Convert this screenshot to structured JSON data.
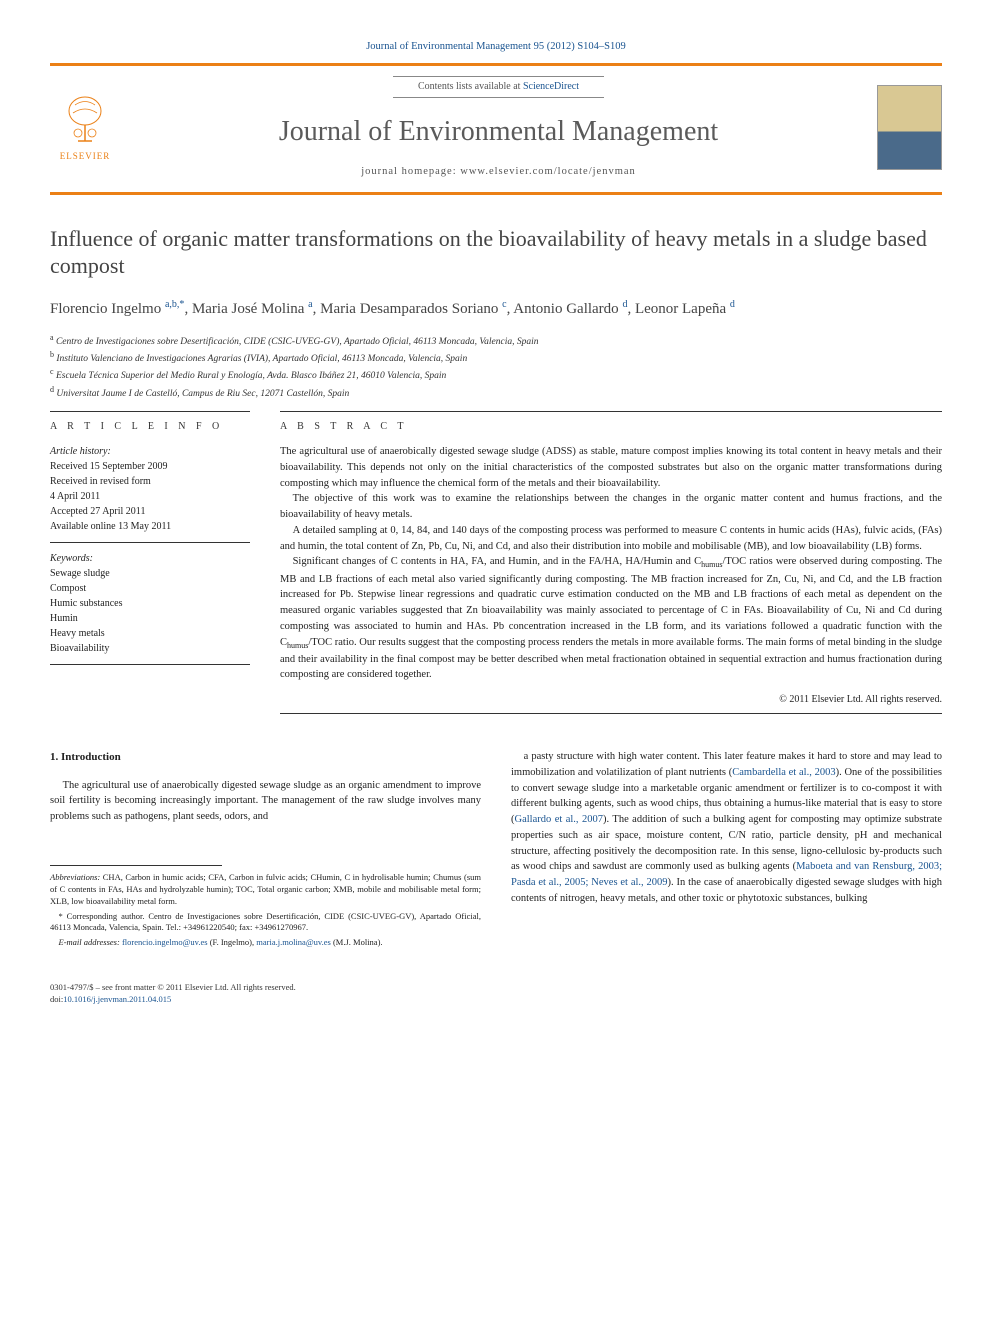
{
  "header": {
    "citation": "Journal of Environmental Management 95 (2012) S104–S109",
    "contents_prefix": "Contents lists available at ",
    "contents_link": "ScienceDirect",
    "journal_name": "Journal of Environmental Management",
    "homepage_prefix": "journal homepage: ",
    "homepage_url": "www.elsevier.com/locate/jenvman",
    "publisher": "ELSEVIER"
  },
  "article": {
    "title": "Influence of organic matter transformations on the bioavailability of heavy metals in a sludge based compost",
    "authors_html": "Florencio Ingelmo <sup>a,b,*</sup>, Maria José Molina <sup>a</sup>, Maria Desamparados Soriano <sup>c</sup>, Antonio Gallardo <sup>d</sup>, Leonor Lapeña <sup>d</sup>",
    "affiliations": [
      "a Centro de Investigaciones sobre Desertificación, CIDE (CSIC-UVEG-GV), Apartado Oficial, 46113 Moncada, Valencia, Spain",
      "b Instituto Valenciano de Investigaciones Agrarias (IVIA), Apartado Oficial, 46113 Moncada, Valencia, Spain",
      "c Escuela Técnica Superior del Medio Rural y Enología, Avda. Blasco Ibáñez 21, 46010 Valencia, Spain",
      "d Universitat Jaume I de Castelló, Campus de Riu Sec, 12071 Castellón, Spain"
    ]
  },
  "info": {
    "heading": "A R T I C L E   I N F O",
    "history_label": "Article history:",
    "history": [
      "Received 15 September 2009",
      "Received in revised form",
      "4 April 2011",
      "Accepted 27 April 2011",
      "Available online 13 May 2011"
    ],
    "keywords_label": "Keywords:",
    "keywords": [
      "Sewage sludge",
      "Compost",
      "Humic substances",
      "Humin",
      "Heavy metals",
      "Bioavailability"
    ]
  },
  "abstract": {
    "heading": "A B S T R A C T",
    "paragraphs": [
      "The agricultural use of anaerobically digested sewage sludge (ADSS) as stable, mature compost implies knowing its total content in heavy metals and their bioavailability. This depends not only on the initial characteristics of the composted substrates but also on the organic matter transformations during composting which may influence the chemical form of the metals and their bioavailability.",
      "The objective of this work was to examine the relationships between the changes in the organic matter content and humus fractions, and the bioavailability of heavy metals.",
      "A detailed sampling at 0, 14, 84, and 140 days of the composting process was performed to measure C contents in humic acids (HAs), fulvic acids, (FAs) and humin, the total content of Zn, Pb, Cu, Ni, and Cd, and also their distribution into mobile and mobilisable (MB), and low bioavailability (LB) forms.",
      "Significant changes of C contents in HA, FA, and Humin, and in the FA/HA, HA/Humin and Chumus/TOC ratios were observed during composting. The MB and LB fractions of each metal also varied significantly during composting. The MB fraction increased for Zn, Cu, Ni, and Cd, and the LB fraction increased for Pb. Stepwise linear regressions and quadratic curve estimation conducted on the MB and LB fractions of each metal as dependent on the measured organic variables suggested that Zn bioavailability was mainly associated to percentage of C in FAs. Bioavailability of Cu, Ni and Cd during composting was associated to humin and HAs. Pb concentration increased in the LB form, and its variations followed a quadratic function with the Chumus/TOC ratio. Our results suggest that the composting process renders the metals in more available forms. The main forms of metal binding in the sludge and their availability in the final compost may be better described when metal fractionation obtained in sequential extraction and humus fractionation during composting are considered together."
    ],
    "copyright": "© 2011 Elsevier Ltd. All rights reserved."
  },
  "body": {
    "section_number": "1.",
    "section_title": "Introduction",
    "left_para": "The agricultural use of anaerobically digested sewage sludge as an organic amendment to improve soil fertility is becoming increasingly important. The management of the raw sludge involves many problems such as pathogens, plant seeds, odors, and",
    "right_para_parts": [
      "a pasty structure with high water content. This later feature makes it hard to store and may lead to immobilization and volatilization of plant nutrients (",
      "Cambardella et al., 2003",
      "). One of the possibilities to convert sewage sludge into a marketable organic amendment or fertilizer is to co-compost it with different bulking agents, such as wood chips, thus obtaining a humus-like material that is easy to store (",
      "Gallardo et al., 2007",
      "). The addition of such a bulking agent for composting may optimize substrate properties such as air space, moisture content, C/N ratio, particle density, pH and mechanical structure, affecting positively the decomposition rate. In this sense, ligno-cellulosic by-products such as wood chips and sawdust are commonly used as bulking agents (",
      "Maboeta and van Rensburg, 2003; Pasda et al., 2005; Neves et al., 2009",
      "). In the case of anaerobically digested sewage sludges with high contents of nitrogen, heavy metals, and other toxic or phytotoxic substances, bulking"
    ]
  },
  "footnotes": {
    "abbrev_label": "Abbreviations:",
    "abbrev_text": " CHA, Carbon in humic acids; CFA, Carbon in fulvic acids; CHumin, C in hydrolisable humin; Chumus (sum of C contents in FAs, HAs and hydrolyzable humin); TOC, Total organic carbon; XMB, mobile and mobilisable metal form; XLB, low bioavailability metal form.",
    "corr_label": "* Corresponding author.",
    "corr_text": " Centro de Investigaciones sobre Desertificación, CIDE (CSIC-UVEG-GV), Apartado Oficial, 46113 Moncada, Valencia, Spain. Tel.: +34961220540; fax: +34961270967.",
    "email_label": "E-mail addresses:",
    "email1": "florencio.ingelmo@uv.es",
    "email1_name": " (F. Ingelmo), ",
    "email2": "maria.j.molina@uv.es",
    "email2_name": " (M.J. Molina)."
  },
  "bottom": {
    "line1": "0301-4797/$ – see front matter © 2011 Elsevier Ltd. All rights reserved.",
    "doi_prefix": "doi:",
    "doi": "10.1016/j.jenvman.2011.04.015"
  },
  "colors": {
    "accent": "#eb8016",
    "link": "#1a5490",
    "text": "#222222",
    "muted": "#5a5a5a"
  }
}
